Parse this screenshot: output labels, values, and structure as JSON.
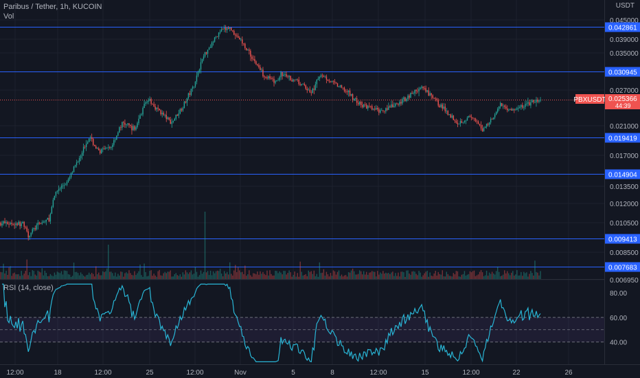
{
  "header": {
    "symbol_line": "Paribus / Tether, 1h, KUCOIN",
    "volume_label": "Vol",
    "currency_label": "USDT"
  },
  "rsi_panel": {
    "label": "RSI (14, close)",
    "ticks": [
      "80.00",
      "60.00",
      "40.00"
    ]
  },
  "badge": {
    "name": "PBXUSDT",
    "price": "0.025366",
    "countdown": "44:39"
  },
  "colors": {
    "background": "#131722",
    "up": "#26a69a",
    "down": "#ef5350",
    "hline": "#2962ff",
    "rsi": "#29b6d6",
    "badge": "#ef5350"
  },
  "chart_data": {
    "type": "candlestick",
    "price_ticks": [
      "0.045000",
      "0.039000",
      "0.035000",
      "0.027000",
      "0.021000",
      "0.017000",
      "0.013500",
      "0.012000",
      "0.010500",
      "0.008500",
      "0.006950"
    ],
    "horizontal_levels": [
      "0.042861",
      "0.030945",
      "0.019419",
      "0.014904",
      "0.009413",
      "0.007683"
    ],
    "x_tick_labels": [
      "12:00",
      "18",
      "12:00",
      "25",
      "12:00",
      "Nov",
      "5",
      "8",
      "12:00",
      "15",
      "12:00",
      "22",
      "26"
    ],
    "last_price": 0.025366,
    "ylim": [
      0.0069,
      0.046
    ],
    "price_path": [
      [
        0,
        0.0105
      ],
      [
        0.04,
        0.0104
      ],
      [
        0.045,
        0.0096
      ],
      [
        0.06,
        0.0103
      ],
      [
        0.08,
        0.0108
      ],
      [
        0.09,
        0.013
      ],
      [
        0.11,
        0.014
      ],
      [
        0.13,
        0.017
      ],
      [
        0.145,
        0.0195
      ],
      [
        0.16,
        0.0175
      ],
      [
        0.18,
        0.018
      ],
      [
        0.2,
        0.0215
      ],
      [
        0.22,
        0.0205
      ],
      [
        0.24,
        0.0255
      ],
      [
        0.26,
        0.0235
      ],
      [
        0.28,
        0.0215
      ],
      [
        0.3,
        0.0245
      ],
      [
        0.315,
        0.0275
      ],
      [
        0.33,
        0.0335
      ],
      [
        0.345,
        0.0375
      ],
      [
        0.36,
        0.0415
      ],
      [
        0.375,
        0.0425
      ],
      [
        0.39,
        0.0395
      ],
      [
        0.41,
        0.0345
      ],
      [
        0.43,
        0.0305
      ],
      [
        0.45,
        0.0285
      ],
      [
        0.46,
        0.0305
      ],
      [
        0.49,
        0.0285
      ],
      [
        0.51,
        0.0265
      ],
      [
        0.525,
        0.0305
      ],
      [
        0.545,
        0.0285
      ],
      [
        0.57,
        0.0265
      ],
      [
        0.59,
        0.0245
      ],
      [
        0.62,
        0.0235
      ],
      [
        0.65,
        0.0245
      ],
      [
        0.675,
        0.0265
      ],
      [
        0.69,
        0.0275
      ],
      [
        0.71,
        0.0255
      ],
      [
        0.73,
        0.0235
      ],
      [
        0.75,
        0.0215
      ],
      [
        0.77,
        0.0225
      ],
      [
        0.79,
        0.0205
      ],
      [
        0.8,
        0.0215
      ],
      [
        0.82,
        0.0245
      ],
      [
        0.84,
        0.0235
      ],
      [
        0.86,
        0.0245
      ],
      [
        0.885,
        0.025366
      ]
    ],
    "rsi_band": [
      40,
      60
    ],
    "rsi_ylim": [
      22,
      90
    ]
  }
}
